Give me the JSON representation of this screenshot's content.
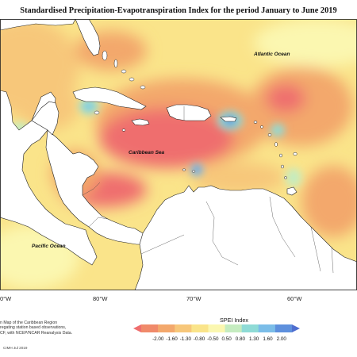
{
  "title": "Standardised Precipitation-Evapotranspiration Index for the period January to June 2019",
  "oceans": {
    "atlantic": "Atlantic Ocean",
    "caribbean": "Caribbean Sea",
    "pacific": "Pacific Ocean"
  },
  "longitudes": [
    "0°W",
    "80°W",
    "70°W",
    "60°W"
  ],
  "notes": [
    "n Map of the Caribbean Region",
    "regating station based observations,",
    "CF, with NCEP/NCAR Reanalysis Data."
  ],
  "credit": "CIMH Jul 2019",
  "legend": {
    "title": "SPEI Index",
    "ticks": [
      "-2.00",
      "-1.60",
      "-1.30",
      "-0.80",
      "-0.50",
      "0.50",
      "0.80",
      "1.30",
      "1.60",
      "2.00"
    ],
    "colors": [
      "#ef6e6e",
      "#f08a6a",
      "#f3a86c",
      "#f7c77a",
      "#fae48a",
      "#fbf7b0",
      "#c5ecc0",
      "#8fdbd6",
      "#7bbde8",
      "#5e90dd",
      "#4f6ecf"
    ]
  },
  "colors": {
    "land": "#ffffff",
    "coast": "#222222",
    "strong_dry": "#ef6e6e",
    "dry": "#f3a16c",
    "mild_dry": "#f7c77a",
    "near_normal": "#fae48a",
    "wet": "#8fdbd6",
    "very_wet": "#4f6ecf"
  }
}
